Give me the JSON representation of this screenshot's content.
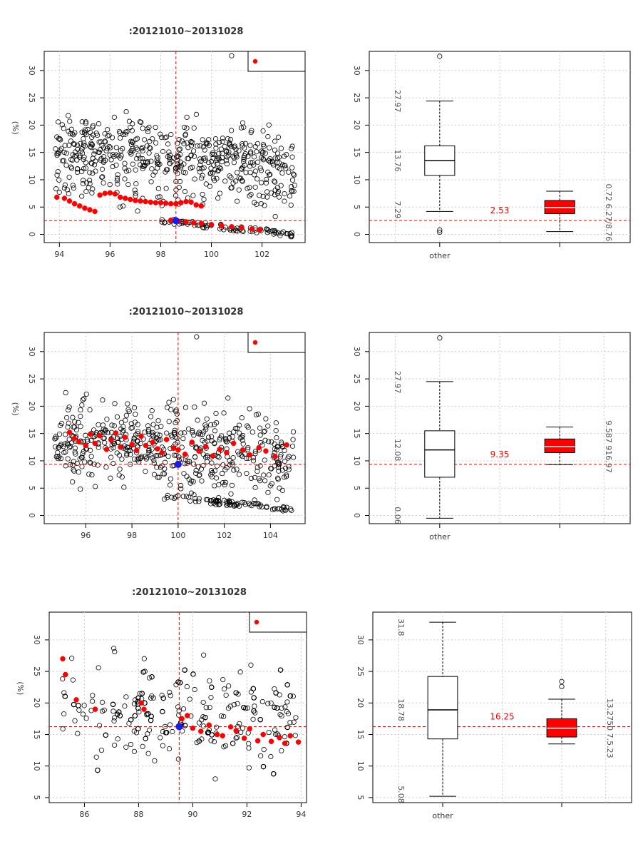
{
  "chart_data": [
    {
      "type": "scatter",
      "title": ":20121010~20131028",
      "ylabel": "(%)",
      "xlim": [
        93.4,
        103.7
      ],
      "ylim": [
        -1.5,
        33.5
      ],
      "xticks": [
        "94",
        "96",
        "98",
        "100",
        "102"
      ],
      "yticks": [
        "0",
        "5",
        "10",
        "15",
        "20",
        "25",
        "30"
      ],
      "vline": 98.6,
      "hline": 2.5,
      "highlight": [
        98.6,
        2.5
      ],
      "outlier": [
        100.8,
        32.7
      ],
      "legend": {
        "position": "top-right",
        "marker": "red"
      },
      "grid": true,
      "gray_seed": 11,
      "gray_count": 560,
      "gray_base": [
        15,
        -0.2
      ],
      "gray_spread": 8,
      "red_series": [
        {
          "x": [
            93.9,
            94.2,
            94.4,
            94.6,
            94.8,
            95.0,
            95.2,
            95.4,
            95.6,
            95.8,
            96.0,
            96.2,
            96.4,
            96.6,
            96.8,
            97.0,
            97.2,
            97.4,
            97.6,
            97.8,
            98.0,
            98.2,
            98.4,
            98.6,
            98.8,
            99.0,
            99.2,
            99.4,
            99.6
          ],
          "y": [
            6.8,
            6.6,
            6.1,
            5.6,
            5.2,
            4.8,
            4.5,
            4.2,
            7.2,
            7.5,
            7.6,
            7.4,
            6.8,
            6.6,
            6.4,
            6.2,
            6.1,
            6.0,
            5.9,
            5.8,
            5.8,
            5.7,
            5.6,
            5.6,
            5.8,
            6.0,
            5.9,
            5.4,
            5.2
          ]
        },
        {
          "x": [
            98.4,
            98.7,
            99.0,
            99.3,
            99.6,
            100.0,
            100.4,
            100.8,
            101.2,
            101.6,
            101.9
          ],
          "y": [
            2.6,
            2.4,
            2.3,
            2.1,
            2.0,
            1.8,
            1.6,
            1.4,
            1.2,
            1.0,
            0.8
          ]
        }
      ]
    },
    {
      "type": "box",
      "categories": [
        "other",
        ""
      ],
      "ylim": [
        -1.5,
        33.5
      ],
      "yticks": [
        "0",
        "5",
        "10",
        "15",
        "20",
        "25",
        "30"
      ],
      "hline": 2.53,
      "hline_label": "2.53",
      "grid": true,
      "boxes": [
        {
          "label": "other",
          "min": 4.2,
          "q1": 10.8,
          "median": 13.5,
          "q3": 16.2,
          "max": 24.4,
          "outliers": [
            32.6,
            0.8,
            0.4
          ],
          "color": "#ffffff"
        },
        {
          "label": "",
          "min": 0.5,
          "q1": 3.8,
          "median": 4.9,
          "q3": 6.2,
          "max": 7.9,
          "outliers": [],
          "color": "#ff0000"
        }
      ],
      "side_texts": [
        {
          "text": "27.97",
          "side": "left",
          "y": 24.4
        },
        {
          "text": "13.76",
          "side": "left",
          "y": 13.5
        },
        {
          "text": "7.29",
          "side": "left",
          "y": 4.5
        },
        {
          "text": "0.72 6.27/8.76",
          "side": "right",
          "y": 4.0
        }
      ]
    },
    {
      "type": "scatter",
      "title": ":20121010~20131028",
      "ylabel": "(%)",
      "xlim": [
        94.2,
        105.5
      ],
      "ylim": [
        -1.5,
        33.5
      ],
      "xticks": [
        "96",
        "98",
        "100",
        "102",
        "104"
      ],
      "yticks": [
        "0",
        "5",
        "10",
        "15",
        "20",
        "25",
        "30"
      ],
      "vline": 100.0,
      "hline": 9.35,
      "highlight": [
        100.0,
        9.35
      ],
      "outlier": [
        100.8,
        32.7
      ],
      "legend": {
        "position": "top-right",
        "marker": "red"
      },
      "grid": true,
      "gray_seed": 23,
      "gray_count": 520,
      "gray_base": [
        14,
        -0.2
      ],
      "gray_spread": 8,
      "red_series": [
        {
          "x": [
            95.3,
            95.5,
            95.7,
            96.0,
            96.2,
            96.4,
            96.6,
            96.9,
            97.1,
            97.3,
            97.5,
            97.7,
            98.0,
            98.2,
            98.4,
            98.6,
            98.9,
            99.1,
            99.3,
            99.5,
            99.8,
            100.0,
            100.3,
            100.6,
            100.9,
            101.2,
            101.5,
            101.8,
            102.1,
            102.4,
            102.8,
            103.1,
            103.5,
            103.8,
            104.2,
            104.7
          ],
          "y": [
            15.2,
            14.1,
            13.5,
            12.8,
            14.9,
            13.2,
            14.6,
            12.1,
            13.8,
            15.1,
            12.5,
            14.3,
            13.0,
            11.9,
            14.5,
            12.8,
            13.4,
            12.2,
            11.5,
            13.9,
            12.3,
            12.0,
            11.2,
            13.4,
            11.8,
            12.6,
            10.9,
            12.1,
            11.5,
            13.2,
            12.0,
            11.1,
            12.4,
            11.8,
            10.8,
            12.9
          ]
        }
      ]
    },
    {
      "type": "box",
      "categories": [
        "other",
        ""
      ],
      "ylim": [
        -1.5,
        33.5
      ],
      "yticks": [
        "0",
        "5",
        "10",
        "15",
        "20",
        "25",
        "30"
      ],
      "hline": 9.35,
      "hline_label": "9.35",
      "grid": true,
      "boxes": [
        {
          "label": "other",
          "min": -0.5,
          "q1": 7.0,
          "median": 12.0,
          "q3": 15.5,
          "max": 24.5,
          "outliers": [
            32.5
          ],
          "color": "#ffffff"
        },
        {
          "label": "",
          "min": 9.3,
          "q1": 11.5,
          "median": 12.6,
          "q3": 14.0,
          "max": 16.2,
          "outliers": [],
          "color": "#ff0000"
        }
      ],
      "side_texts": [
        {
          "text": "27.97",
          "side": "left",
          "y": 24.4
        },
        {
          "text": "12.08",
          "side": "left",
          "y": 12.0
        },
        {
          "text": "0.06",
          "side": "left",
          "y": 0.0
        },
        {
          "text": "9.587 916.97",
          "side": "right",
          "y": 12.6
        }
      ]
    },
    {
      "type": "scatter",
      "title": ":20121010~20131028",
      "ylabel": "(%)",
      "xlim": [
        84.7,
        94.2
      ],
      "ylim": [
        4.2,
        34.4
      ],
      "xticks": [
        "86",
        "88",
        "90",
        "92",
        "94"
      ],
      "yticks": [
        "5",
        "10",
        "15",
        "20",
        "25",
        "30"
      ],
      "vline": 89.5,
      "hline": 16.25,
      "highlight": [
        89.5,
        16.25
      ],
      "outlier": null,
      "legend": {
        "position": "top-right",
        "marker": "red"
      },
      "grid": true,
      "gray_seed": 37,
      "gray_count": 560,
      "gray_base": [
        19,
        4.8
      ],
      "gray_spread": 9,
      "red_series": [
        {
          "x": [
            85.2,
            85.3,
            85.7,
            86.4,
            88.1,
            88.2,
            89.6,
            89.8,
            90.0,
            90.3,
            90.6,
            90.9,
            91.1,
            91.4,
            91.6,
            91.9,
            92.1,
            92.4,
            92.6,
            92.9,
            93.2,
            93.4,
            93.6,
            93.9
          ],
          "y": [
            27.0,
            24.5,
            20.5,
            19.0,
            20.0,
            19.0,
            17.5,
            18.0,
            16.0,
            15.5,
            16.5,
            15.0,
            14.8,
            16.2,
            15.6,
            14.4,
            15.9,
            14.0,
            15.0,
            13.9,
            14.5,
            13.6,
            14.8,
            13.8
          ]
        }
      ]
    },
    {
      "type": "box",
      "categories": [
        "other",
        ""
      ],
      "ylim": [
        4.2,
        34.4
      ],
      "yticks": [
        "5",
        "10",
        "15",
        "20",
        "25",
        "30"
      ],
      "hline": 16.25,
      "hline_label": "16.25",
      "grid": true,
      "boxes": [
        {
          "label": "other",
          "min": 5.2,
          "q1": 14.3,
          "median": 18.9,
          "q3": 24.2,
          "max": 32.8,
          "outliers": [],
          "color": "#ffffff"
        },
        {
          "label": "",
          "min": 13.5,
          "q1": 14.6,
          "median": 16.0,
          "q3": 17.5,
          "max": 20.6,
          "outliers": [
            22.6,
            23.4
          ],
          "color": "#ff0000"
        }
      ],
      "side_texts": [
        {
          "text": "31.8",
          "side": "left",
          "y": 32.0
        },
        {
          "text": "18.78",
          "side": "left",
          "y": 18.9
        },
        {
          "text": "5.08",
          "side": "left",
          "y": 5.5
        },
        {
          "text": "13.2750 7.5.23",
          "side": "right",
          "y": 16.0
        }
      ]
    }
  ]
}
